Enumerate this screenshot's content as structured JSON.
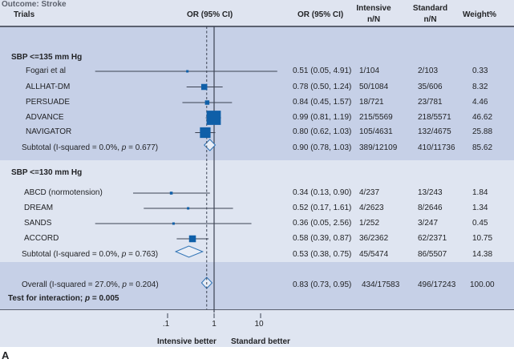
{
  "figure": {
    "panel_label": "A"
  },
  "header": {
    "outcome": "Outcome: Stroke",
    "trials": "Trials",
    "plot_column": "OR (95% CI)",
    "or_column": "OR (95% CI)",
    "intensive": "Intensive",
    "intensive_sub": "n/N",
    "standard": "Standard",
    "standard_sub": "n/N",
    "weight": "Weight%"
  },
  "colors": {
    "study_box": "#0f5fa8",
    "diamond_stroke": "#2f73b5",
    "diamond_fill": "#e8edf6",
    "line": "#3b4252",
    "band_dark": "#c6d0e7",
    "band_light": "#dfe5f1"
  },
  "chart_data": {
    "type": "scatter",
    "subtype": "forest-plot",
    "title": "Outcome: Stroke",
    "x_scale": "log",
    "x_ticks": [
      0.1,
      1,
      10
    ],
    "x_tick_labels": [
      ".1",
      "1",
      "10"
    ],
    "xlabel_left": "Intensive better",
    "xlabel_right": "Standard better",
    "reference_value": 1,
    "pooled_estimate": 0.83,
    "grid": false,
    "columns": [
      "Trials",
      "OR (95% CI)",
      "Intensive n/N",
      "Standard n/N",
      "Weight%"
    ],
    "groups": [
      {
        "label": "SBP <=135 mm Hg",
        "studies": [
          {
            "name": "Fogari et al",
            "or": 0.51,
            "lo": 0.05,
            "hi": 4.91,
            "or_text": "0.51 (0.05, 4.91)",
            "intensive": "1/104",
            "standard": "2/103",
            "weight": "0.33"
          },
          {
            "name": "ALLHAT-DM",
            "or": 0.78,
            "lo": 0.5,
            "hi": 1.24,
            "or_text": "0.78 (0.50, 1.24)",
            "intensive": "50/1084",
            "standard": "35/606",
            "weight": "8.32"
          },
          {
            "name": "PERSUADE",
            "or": 0.84,
            "lo": 0.45,
            "hi": 1.57,
            "or_text": "0.84 (0.45, 1.57)",
            "intensive": "18/721",
            "standard": "23/781",
            "weight": "4.46"
          },
          {
            "name": "ADVANCE",
            "or": 0.99,
            "lo": 0.81,
            "hi": 1.19,
            "or_text": "0.99 (0.81, 1.19)",
            "intensive": "215/5569",
            "standard": "218/5571",
            "weight": "46.62"
          },
          {
            "name": "NAVIGATOR",
            "or": 0.8,
            "lo": 0.62,
            "hi": 1.03,
            "or_text": "0.80 (0.62, 1.03)",
            "intensive": "105/4631",
            "standard": "132/4675",
            "weight": "25.88"
          }
        ],
        "subtotal": {
          "label_prefix": "Subtotal (I-squared = 0.0%, ",
          "p": "p",
          "label_suffix": " = 0.677)",
          "or": 0.9,
          "lo": 0.78,
          "hi": 1.03,
          "or_text": "0.90 (0.78, 1.03)",
          "intensive": "389/12109",
          "standard": "410/11736",
          "weight": "85.62"
        }
      },
      {
        "label": "SBP <=130 mm Hg",
        "studies": [
          {
            "name": "ABCD (normotension)",
            "or": 0.34,
            "lo": 0.13,
            "hi": 0.9,
            "or_text": "0.34 (0.13, 0.90)",
            "intensive": "4/237",
            "standard": "13/243",
            "weight": "1.84"
          },
          {
            "name": "DREAM",
            "or": 0.52,
            "lo": 0.17,
            "hi": 1.61,
            "or_text": "0.52 (0.17, 1.61)",
            "intensive": "4/2623",
            "standard": "8/2646",
            "weight": "1.34"
          },
          {
            "name": "SANDS",
            "or": 0.36,
            "lo": 0.05,
            "hi": 2.56,
            "or_text": "0.36 (0.05, 2.56)",
            "intensive": "1/252",
            "standard": "3/247",
            "weight": "0.45"
          },
          {
            "name": "ACCORD",
            "or": 0.58,
            "lo": 0.39,
            "hi": 0.87,
            "or_text": "0.58 (0.39, 0.87)",
            "intensive": "36/2362",
            "standard": "62/2371",
            "weight": "10.75"
          }
        ],
        "subtotal": {
          "label_prefix": "Subtotal (I-squared = 0.0%, ",
          "p": "p",
          "label_suffix": " = 0.763)",
          "or": 0.53,
          "lo": 0.38,
          "hi": 0.75,
          "or_text": "0.53 (0.38, 0.75)",
          "intensive": "45/5474",
          "standard": "86/5507",
          "weight": "14.38"
        }
      }
    ],
    "overall": {
      "label_prefix": "Overall (I-squared = 27.0%, ",
      "p": "p",
      "label_suffix": " = 0.204)",
      "or": 0.83,
      "lo": 0.73,
      "hi": 0.95,
      "or_text": "0.83 (0.73, 0.95)",
      "intensive": "434/17583",
      "standard": "496/17243",
      "weight": "100.00"
    },
    "interaction": {
      "prefix": "Test for interaction; ",
      "p": "p",
      "suffix": " = 0.005",
      "p_value": 0.005
    }
  }
}
